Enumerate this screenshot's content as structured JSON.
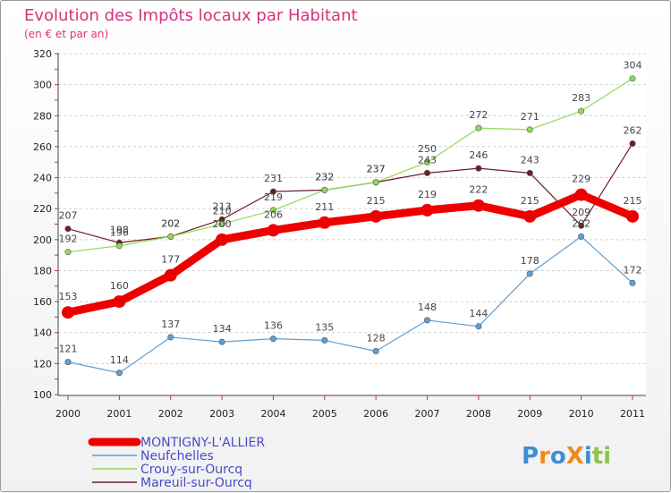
{
  "chart_data": {
    "type": "line",
    "title": "Evolution des Impôts locaux par Habitant",
    "subtitle": "(en € et par an)",
    "x": [
      "2000",
      "2001",
      "2002",
      "2003",
      "2004",
      "2005",
      "2006",
      "2007",
      "2008",
      "2009",
      "2010",
      "2011"
    ],
    "y_ticks": [
      100,
      120,
      140,
      160,
      180,
      200,
      220,
      240,
      260,
      280,
      300,
      320
    ],
    "ylim": [
      100,
      320
    ],
    "grid": true,
    "legend_position": "bottom-left",
    "series": [
      {
        "name": "MONTIGNY-L'ALLIER",
        "color": "#ee0000",
        "values": [
          153,
          160,
          177,
          200,
          206,
          211,
          215,
          219,
          222,
          215,
          229,
          215
        ]
      },
      {
        "name": "Neufchelles",
        "color": "#5f9fd3",
        "values": [
          121,
          114,
          137,
          134,
          136,
          135,
          128,
          148,
          144,
          178,
          202,
          172
        ]
      },
      {
        "name": "Crouy-sur-Ourcq",
        "color": "#8edb5a",
        "values": [
          192,
          196,
          202,
          210,
          219,
          232,
          237,
          250,
          272,
          271,
          283,
          304
        ]
      },
      {
        "name": "Mareuil-sur-Ourcq",
        "color": "#6e1e24",
        "values": [
          207,
          198,
          202,
          213,
          231,
          232,
          237,
          243,
          246,
          243,
          209,
          262
        ]
      }
    ]
  },
  "logo": {
    "text": "ProXiti"
  }
}
